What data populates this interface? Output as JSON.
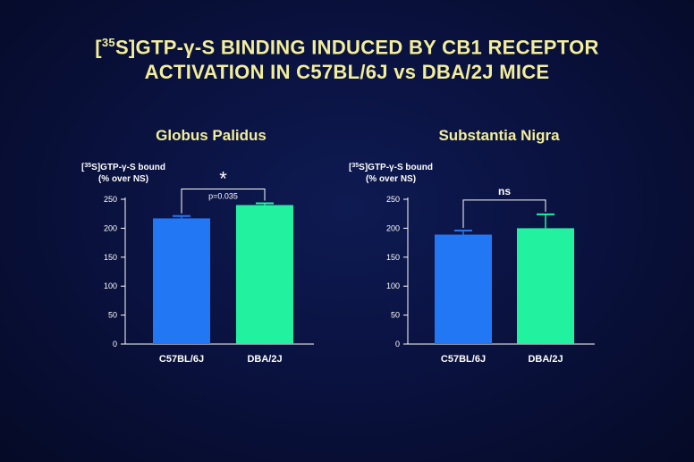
{
  "slide": {
    "title_line1_prefix": "[",
    "title_sup": "35",
    "title_line1_rest": "S]GTP-γ-S BINDING INDUCED BY CB1 RECEPTOR",
    "title_line2": "ACTIVATION IN C57BL/6J vs DBA/2J MICE"
  },
  "colors": {
    "title": "#f2ee9a",
    "c57": "#2277f5",
    "dba": "#22f2a0",
    "axis": "#ffffff"
  },
  "chart_data": [
    {
      "type": "bar",
      "title": "Globus Palidus",
      "ylabel_line1": "[35S]GTP-γ-S bound",
      "ylabel_line2": "(% over NS)",
      "categories": [
        "C57BL/6J",
        "DBA/2J"
      ],
      "values": [
        217,
        240
      ],
      "errors": [
        4,
        3
      ],
      "ylim": [
        0,
        250
      ],
      "yticks": [
        0,
        50,
        100,
        150,
        200,
        250
      ],
      "significance": {
        "symbol": "*",
        "p_label": "p=0.035"
      }
    },
    {
      "type": "bar",
      "title": "Substantia Nigra",
      "ylabel_line1": "[35S]GTP-γ-S bound",
      "ylabel_line2": "(% over NS)",
      "categories": [
        "C57BL/6J",
        "DBA/2J"
      ],
      "values": [
        189,
        200
      ],
      "errors": [
        7,
        24
      ],
      "ylim": [
        0,
        250
      ],
      "yticks": [
        0,
        50,
        100,
        150,
        200,
        250
      ],
      "significance": {
        "symbol": "ns",
        "p_label": ""
      }
    }
  ]
}
